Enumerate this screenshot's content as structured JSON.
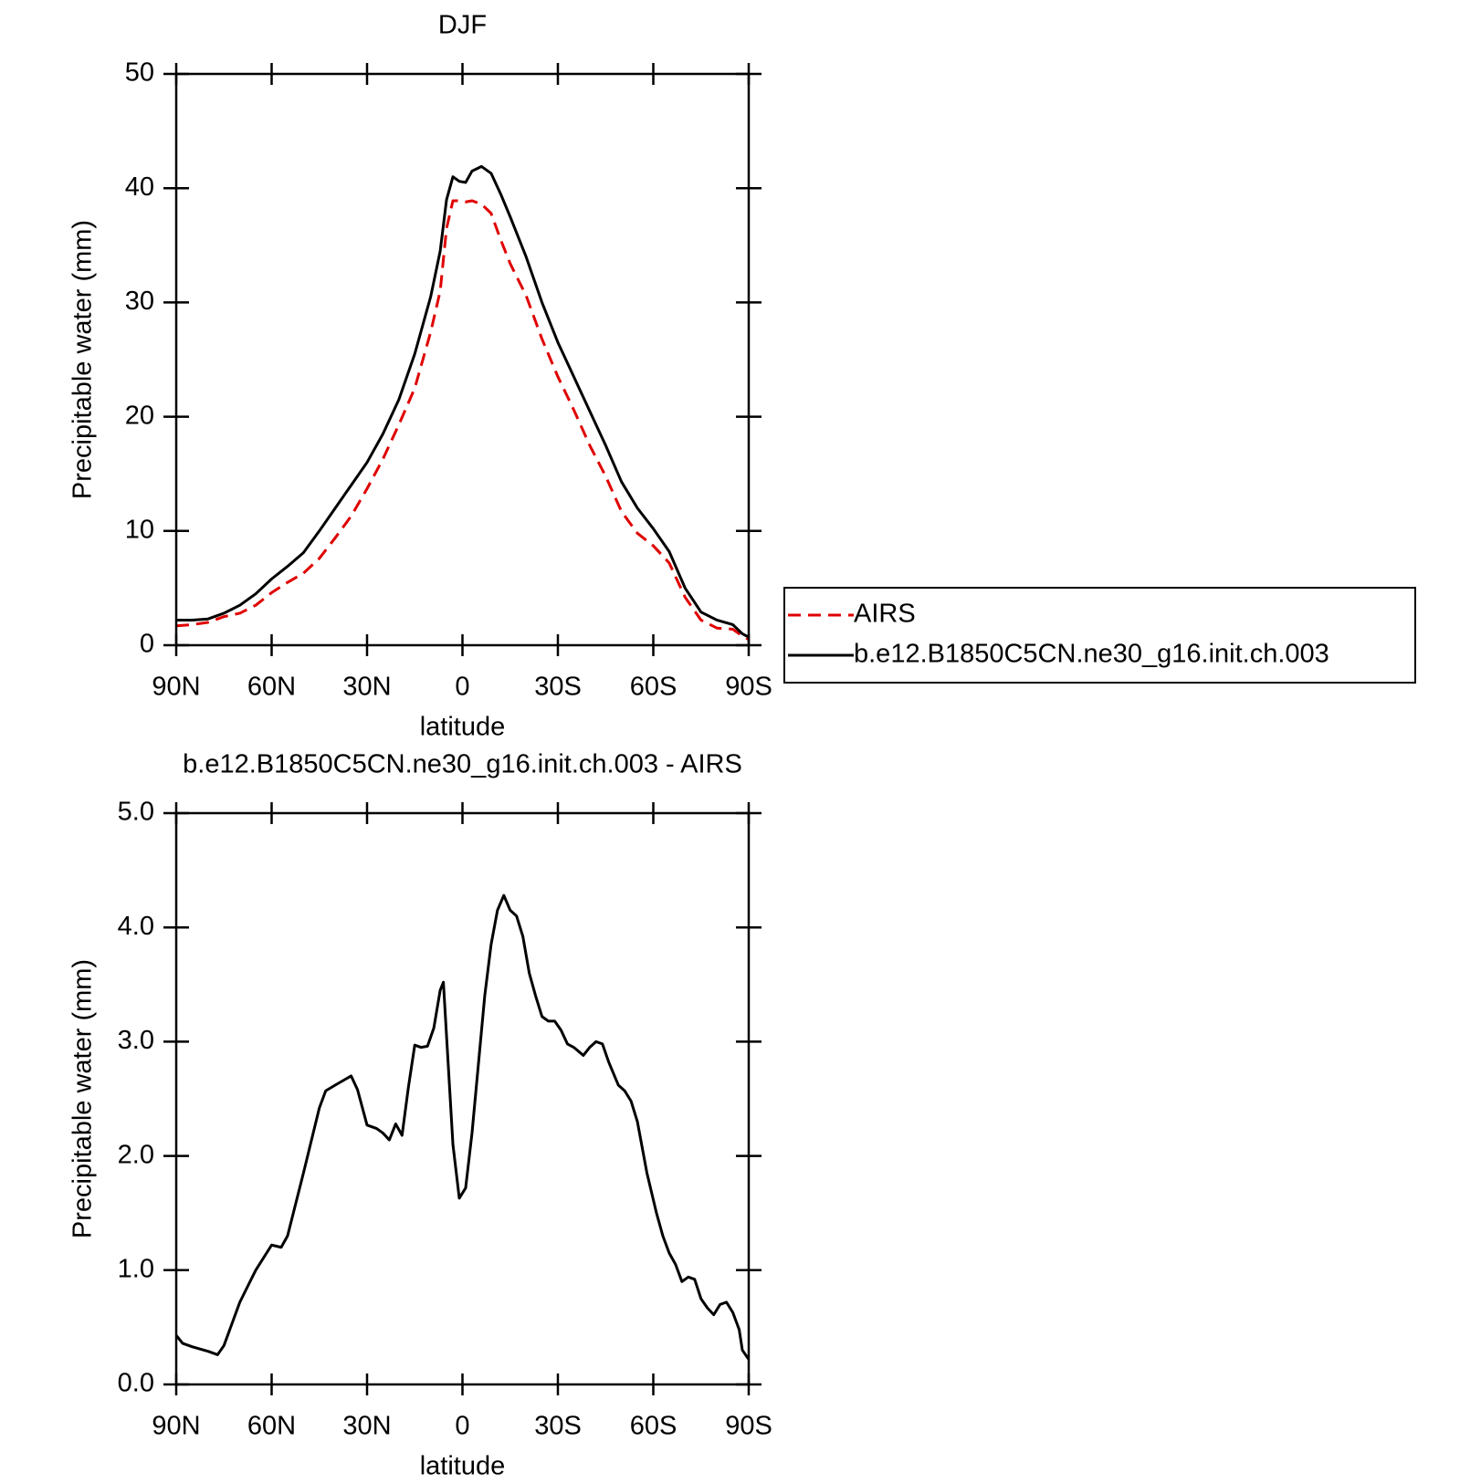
{
  "chart_data": [
    {
      "type": "line",
      "title": "DJF",
      "xlabel": "latitude",
      "ylabel": "Precipitable water (mm)",
      "x": [
        90,
        85,
        80,
        75,
        70,
        65,
        60,
        55,
        50,
        45,
        40,
        35,
        30,
        25,
        20,
        15,
        10,
        7,
        5,
        3,
        1,
        -1,
        -3,
        -6,
        -9,
        -12,
        -15,
        -20,
        -25,
        -30,
        -35,
        -40,
        -45,
        -50,
        -55,
        -60,
        -65,
        -70,
        -75,
        -80,
        -85,
        -88,
        -90
      ],
      "series": [
        {
          "name": "AIRS",
          "color": "#e00000",
          "dash": "dashed",
          "values": [
            1.7,
            1.8,
            2.0,
            2.5,
            2.8,
            3.5,
            4.6,
            5.5,
            6.3,
            7.6,
            9.4,
            11.3,
            13.7,
            16.3,
            19.3,
            22.5,
            27.4,
            31.0,
            36.5,
            38.9,
            38.9,
            38.8,
            38.9,
            38.6,
            37.8,
            35.5,
            33.4,
            30.6,
            26.8,
            23.5,
            20.6,
            17.5,
            14.8,
            11.7,
            9.8,
            8.7,
            7.2,
            4.2,
            2.2,
            1.5,
            1.4,
            0.8,
            0.5
          ]
        },
        {
          "name": "b.e12.B1850C5CN.ne30_g16.init.ch.003",
          "color": "#000000",
          "dash": "solid",
          "values": [
            2.2,
            2.2,
            2.3,
            2.8,
            3.5,
            4.5,
            5.8,
            6.9,
            8.1,
            10.0,
            12.0,
            14.0,
            16.0,
            18.5,
            21.5,
            25.5,
            30.5,
            34.5,
            39.0,
            41.0,
            40.6,
            40.5,
            41.5,
            41.9,
            41.3,
            39.5,
            37.5,
            34.0,
            30.0,
            26.5,
            23.5,
            20.5,
            17.5,
            14.3,
            12.0,
            10.2,
            8.2,
            5.0,
            2.9,
            2.2,
            1.8,
            1.0,
            0.7
          ]
        }
      ],
      "xlim": [
        90,
        -90
      ],
      "xticks": [
        {
          "value": 90,
          "label": "90N"
        },
        {
          "value": 60,
          "label": "60N"
        },
        {
          "value": 30,
          "label": "30N"
        },
        0,
        {
          "value": -30,
          "label": "30S"
        },
        {
          "value": -60,
          "label": "60S"
        },
        {
          "value": -90,
          "label": "90S"
        }
      ],
      "ylim": [
        0,
        50
      ],
      "yticks": [
        0,
        10,
        20,
        30,
        40,
        50
      ],
      "grid": false,
      "legend": "right"
    },
    {
      "type": "line",
      "title": "b.e12.B1850C5CN.ne30_g16.init.ch.003 - AIRS",
      "xlabel": "latitude",
      "ylabel": "Precipitable water (mm)",
      "x": [
        90,
        88,
        85,
        80,
        77,
        75,
        70,
        65,
        60,
        57,
        55,
        50,
        45,
        43,
        40,
        35,
        33,
        30,
        27,
        25,
        23,
        21,
        19,
        17,
        15,
        13,
        11,
        9,
        7,
        6,
        3,
        1,
        -1,
        -3,
        -5,
        -7,
        -9,
        -11,
        -13,
        -15,
        -17,
        -19,
        -21,
        -23,
        -25,
        -27,
        -29,
        -31,
        -33,
        -35,
        -38,
        -40,
        -42,
        -44,
        -46,
        -49,
        -51,
        -53,
        -55,
        -58,
        -61,
        -63,
        -65,
        -67,
        -69,
        -71,
        -73,
        -75,
        -77,
        -79,
        -81,
        -83,
        -85,
        -87,
        -88,
        -90
      ],
      "values": [
        0.43,
        0.36,
        0.33,
        0.29,
        0.26,
        0.34,
        0.72,
        1.0,
        1.22,
        1.2,
        1.3,
        1.85,
        2.42,
        2.57,
        2.62,
        2.7,
        2.58,
        2.27,
        2.24,
        2.2,
        2.14,
        2.28,
        2.18,
        2.6,
        2.97,
        2.95,
        2.96,
        3.12,
        3.45,
        3.52,
        2.1,
        1.63,
        1.72,
        2.2,
        2.8,
        3.4,
        3.85,
        4.15,
        4.28,
        4.15,
        4.1,
        3.92,
        3.6,
        3.4,
        3.22,
        3.18,
        3.18,
        3.1,
        2.98,
        2.95,
        2.88,
        2.95,
        3.0,
        2.98,
        2.82,
        2.62,
        2.57,
        2.48,
        2.3,
        1.85,
        1.5,
        1.3,
        1.15,
        1.05,
        0.9,
        0.94,
        0.92,
        0.75,
        0.67,
        0.61,
        0.7,
        0.72,
        0.63,
        0.48,
        0.3,
        0.22
      ],
      "color": "#000000",
      "dash": "solid",
      "xlim": [
        90,
        -90
      ],
      "xticks": [
        {
          "value": 90,
          "label": "90N"
        },
        {
          "value": 60,
          "label": "60N"
        },
        {
          "value": 30,
          "label": "30N"
        },
        0,
        {
          "value": -30,
          "label": "30S"
        },
        {
          "value": -60,
          "label": "60S"
        },
        {
          "value": -90,
          "label": "90S"
        }
      ],
      "ylim": [
        0,
        5
      ],
      "yticks": [
        {
          "value": 0,
          "label": "0.0"
        },
        {
          "value": 1,
          "label": "1.0"
        },
        {
          "value": 2,
          "label": "2.0"
        },
        {
          "value": 3,
          "label": "3.0"
        },
        {
          "value": 4,
          "label": "4.0"
        },
        {
          "value": 5,
          "label": "5.0"
        }
      ],
      "grid": false
    }
  ]
}
